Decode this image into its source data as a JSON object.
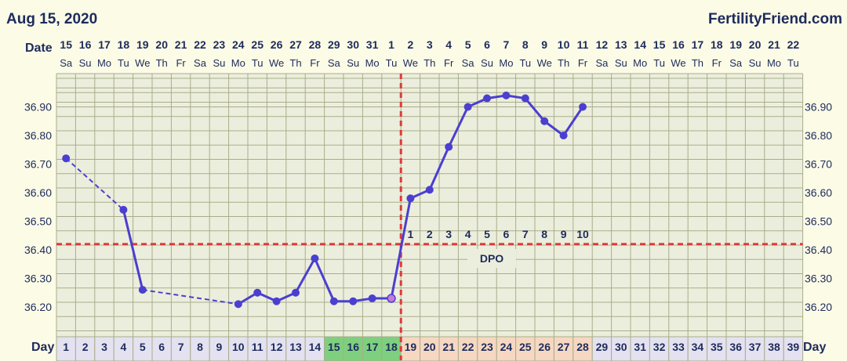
{
  "header": {
    "date_title": "Aug 15, 2020",
    "site": "FertilityFriend.com",
    "date_row_label": "Date",
    "day_row_label": "Day"
  },
  "chart_data": {
    "type": "line",
    "x_dates": [
      "15",
      "16",
      "17",
      "18",
      "19",
      "20",
      "21",
      "22",
      "23",
      "24",
      "25",
      "26",
      "27",
      "28",
      "29",
      "30",
      "31",
      "1",
      "2",
      "3",
      "4",
      "5",
      "6",
      "7",
      "8",
      "9",
      "10",
      "11",
      "12",
      "13",
      "14",
      "15",
      "16",
      "17",
      "18",
      "19",
      "20",
      "21",
      "22"
    ],
    "x_weekdays": [
      "Sa",
      "Su",
      "Mo",
      "Tu",
      "We",
      "Th",
      "Fr",
      "Sa",
      "Su",
      "Mo",
      "Tu",
      "We",
      "Th",
      "Fr",
      "Sa",
      "Su",
      "Mo",
      "Tu",
      "We",
      "Th",
      "Fr",
      "Sa",
      "Su",
      "Mo",
      "Tu",
      "We",
      "Th",
      "Fr",
      "Sa",
      "Su",
      "Mo",
      "Tu",
      "We",
      "Th",
      "Fr",
      "Sa",
      "Su",
      "Mo",
      "Tu"
    ],
    "cycle_days": [
      1,
      2,
      3,
      4,
      5,
      6,
      7,
      8,
      9,
      10,
      11,
      12,
      13,
      14,
      15,
      16,
      17,
      18,
      19,
      20,
      21,
      22,
      23,
      24,
      25,
      26,
      27,
      28,
      29,
      30,
      31,
      32,
      33,
      34,
      35,
      36,
      37,
      38,
      39
    ],
    "y_ticks": [
      "36.20",
      "36.30",
      "36.40",
      "36.50",
      "36.60",
      "36.70",
      "36.80",
      "36.90"
    ],
    "ylim": [
      36.1,
      36.99
    ],
    "series": [
      {
        "points": [
          {
            "day": 1,
            "temp": 36.72
          },
          {
            "day": 4,
            "temp": 36.54
          },
          {
            "day": 5,
            "temp": 36.26
          },
          {
            "day": 10,
            "temp": 36.21
          },
          {
            "day": 11,
            "temp": 36.25
          },
          {
            "day": 12,
            "temp": 36.22
          },
          {
            "day": 13,
            "temp": 36.25
          },
          {
            "day": 14,
            "temp": 36.37
          },
          {
            "day": 15,
            "temp": 36.22
          },
          {
            "day": 16,
            "temp": 36.22
          },
          {
            "day": 17,
            "temp": 36.23
          },
          {
            "day": 18,
            "temp": 36.23
          },
          {
            "day": 19,
            "temp": 36.58
          },
          {
            "day": 20,
            "temp": 36.61
          },
          {
            "day": 21,
            "temp": 36.76
          },
          {
            "day": 22,
            "temp": 36.9
          },
          {
            "day": 23,
            "temp": 36.93
          },
          {
            "day": 24,
            "temp": 36.94
          },
          {
            "day": 25,
            "temp": 36.93
          },
          {
            "day": 26,
            "temp": 36.85
          },
          {
            "day": 27,
            "temp": 36.8
          },
          {
            "day": 28,
            "temp": 36.9
          }
        ]
      }
    ],
    "coverline_temp": 36.42,
    "ovulation_day": 18,
    "dpo_numbers": [
      "1",
      "2",
      "3",
      "4",
      "5",
      "6",
      "7",
      "8",
      "9",
      "10"
    ],
    "dpo_label": "DPO",
    "fertile_days": [
      15,
      16,
      17,
      18
    ],
    "luteal_days": [
      19,
      20,
      21,
      22,
      23,
      24,
      25,
      26,
      27,
      28
    ],
    "grid": true
  },
  "colors": {
    "background": "#fcfbe6",
    "plot_background": "#eceedd",
    "grid": "#a9ad8a",
    "line": "#4b3fd0",
    "coverline": "#dd3b3b",
    "text": "#1d2b5c",
    "fertile_cell": "#7ed07e",
    "luteal_cell": "#f6d8c2",
    "day_cell": "#e4e2f0"
  }
}
